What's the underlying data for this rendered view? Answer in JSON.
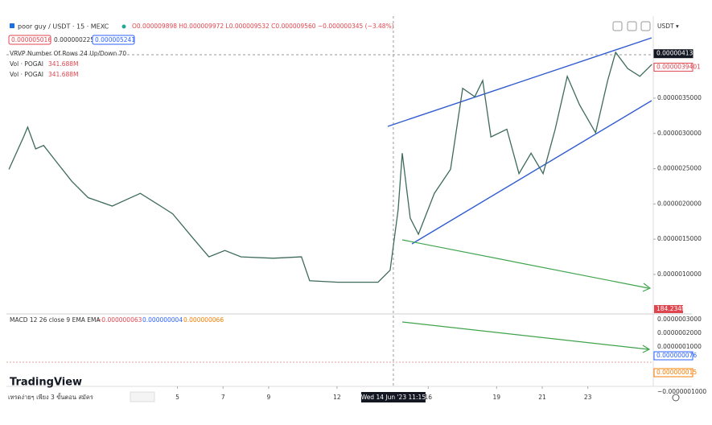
{
  "header": {
    "symbol": "poor guy / USDT · 15 · MEXC",
    "ohlc": "O0.000009898 H0.000009972 L0.000009532 C0.000009560 −0.000000345 (−3.48%)",
    "sell": "0.000005016",
    "spread": "0.000000225",
    "buy": "0.000005241",
    "indicators": [
      "VRVP Number Of Rows 24 Up/Down 70",
      "Vol · POGAI",
      "Vol · POGAI"
    ],
    "indicator_values": [
      "341.688M",
      "341.688M"
    ],
    "currency": "USDT ▾"
  },
  "chart_data": {
    "type": "line",
    "color": "#3d6b58",
    "x": [
      -2.39,
      -1.75,
      -1.57,
      -1.22,
      -0.87,
      -0.34,
      0.37,
      1.08,
      2.14,
      3.37,
      4.26,
      4.79,
      5.67,
      6.38,
      7.08,
      7.79,
      9.2,
      10.44,
      10.8,
      12.03,
      13.8,
      14.33,
      14.68,
      14.86,
      15.21,
      15.57,
      16.27,
      16.98,
      17.51,
      18.04,
      18.39,
      18.75,
      19.45,
      19.98,
      20.51,
      21.04,
      21.57,
      22.1,
      22.63,
      23.34,
      23.87,
      24.22,
      24.75,
      25.28,
      25.81
    ],
    "values": [
      2.49e-06,
      2.95e-06,
      3.09e-06,
      2.78e-06,
      2.83e-06,
      2.61e-06,
      2.32e-06,
      2.09e-06,
      1.97e-06,
      2.15e-06,
      1.97e-06,
      1.86e-06,
      1.52e-06,
      1.25e-06,
      1.34e-06,
      1.25e-06,
      1.23e-06,
      1.25e-06,
      9.1e-07,
      8.9e-07,
      8.9e-07,
      1.06e-06,
      1.92e-06,
      2.72e-06,
      1.8e-06,
      1.57e-06,
      2.15e-06,
      2.49e-06,
      3.64e-06,
      3.52e-06,
      3.75e-06,
      2.95e-06,
      3.06e-06,
      2.43e-06,
      2.72e-06,
      2.43e-06,
      3.06e-06,
      3.81e-06,
      3.41e-06,
      3.01e-06,
      3.75e-06,
      4.15e-06,
      3.92e-06,
      3.81e-06,
      3.98e-06
    ],
    "xlim": [
      -2.5,
      25.8
    ],
    "ylim": [
      4.4e-07,
      4.55e-06
    ],
    "xticks": [
      5,
      7,
      9,
      12,
      16,
      19,
      21,
      23
    ],
    "yticks": [
      {
        "value": 3.5e-06,
        "label": "0.0000035000"
      },
      {
        "value": 3e-06,
        "label": "0.0000030000"
      },
      {
        "value": 2.5e-06,
        "label": "0.0000025000"
      },
      {
        "value": 2e-06,
        "label": "0.0000020000"
      },
      {
        "value": 1.5e-06,
        "label": "0.0000015000"
      },
      {
        "value": 1e-06,
        "label": "0.0000010000"
      }
    ],
    "price_labels": [
      {
        "value": 4.131e-06,
        "label": "0.0000041310"
      },
      {
        "value": 3.9401e-06,
        "label": "0.0000039401"
      }
    ],
    "crosshair": {
      "value": 14.47,
      "label": "Wed 14 Jun '23   11:15"
    },
    "volume_label": "184.234M"
  },
  "macd": {
    "title": "MACD 12 26 close 9 EMA EMA",
    "values": [
      "−0.000000063",
      "0.000000004",
      "0.000000066"
    ],
    "ticks": [
      "0.0000003000",
      "0.0000002000",
      "0.0000001000",
      "−0.0000001000"
    ],
    "labels": [
      "0.000000076",
      "0.000000015"
    ]
  },
  "footer": {
    "brand": "TradingView",
    "promo": "เทรดง่ายๆ เพียง 3 ขั้นตอน สมัคร"
  }
}
